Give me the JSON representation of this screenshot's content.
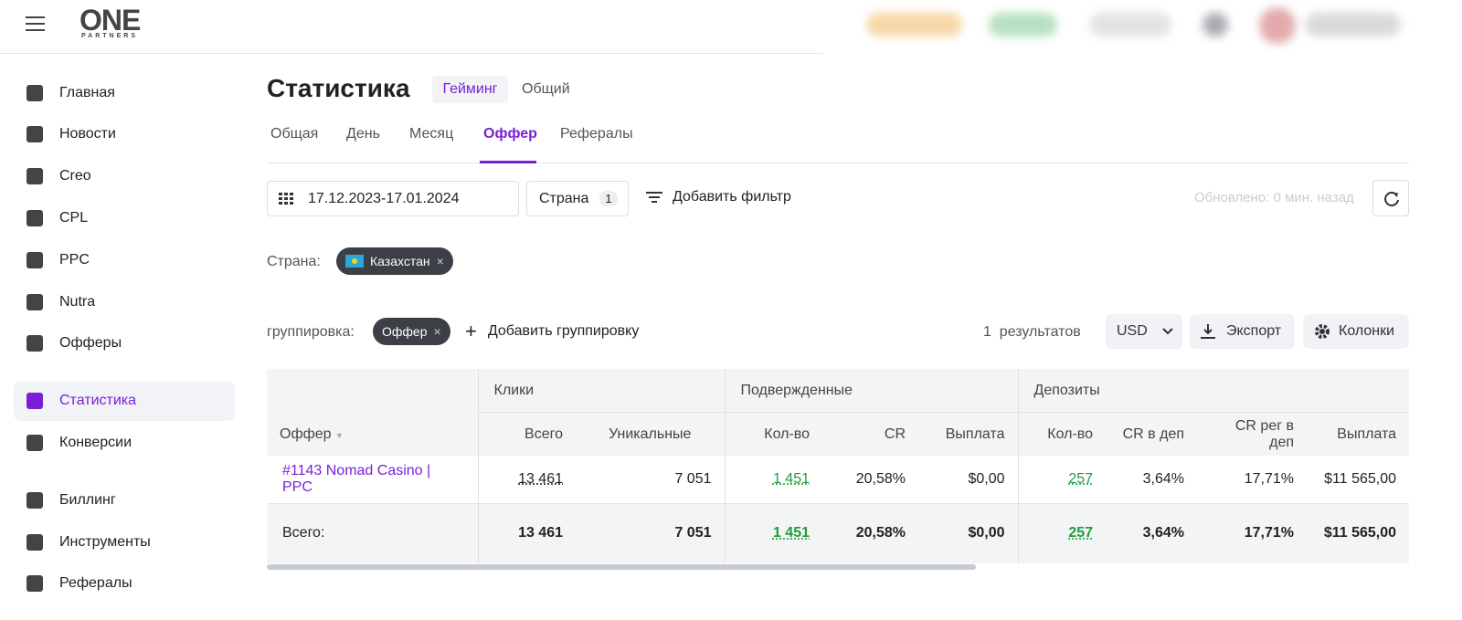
{
  "header": {
    "logo": "ONE",
    "logo_sub": "PARTNERS"
  },
  "sidebar": {
    "sections": [
      [
        "Главная",
        "Новости",
        "Creo",
        "CPL",
        "PPC",
        "Nutra",
        "Офферы"
      ],
      [
        "Статистика",
        "Конверсии"
      ],
      [
        "Биллинг",
        "Инструменты",
        "Рефералы"
      ]
    ]
  },
  "page": {
    "title": "Статистика",
    "modes": [
      "Гейминг",
      "Общий"
    ],
    "tabs": [
      "Общая",
      "День",
      "Месяц",
      "Оффер",
      "Рефералы"
    ]
  },
  "filters": {
    "date": "17.12.2023-17.01.2024",
    "country": "Страна",
    "country_count": "1",
    "add_filter": "Добавить фильтр",
    "updated": "Обновлено: 0 мин. назад",
    "active_label": "Страна:",
    "active_chip": "Казахстан"
  },
  "grouping": {
    "label": "группировка:",
    "chip": "Оффер",
    "add": "Добавить группировку",
    "results_count": "1",
    "results_label": "результатов",
    "currency": "USD",
    "export": "Экспорт",
    "columns": "Колонки"
  },
  "table": {
    "offer_header": "Оффер",
    "groups": [
      "Клики",
      "Подвержденные",
      "Депозиты"
    ],
    "columns": [
      "Всего",
      "Уникальные",
      "Кол-во",
      "CR",
      "Выплата",
      "Кол-во",
      "CR в деп",
      "CR рег в деп",
      "Выплата"
    ],
    "rows": [
      [
        "#1143 Nomad Casino | PPC",
        "13 461",
        "7 051",
        "1 451",
        "20,58%",
        "$0,00",
        "257",
        "3,64%",
        "17,71%",
        "$11 565,00"
      ]
    ],
    "total": [
      "Всего:",
      "13 461",
      "7 051",
      "1 451",
      "20,58%",
      "$0,00",
      "257",
      "3,64%",
      "17,71%",
      "$11 565,00"
    ]
  }
}
